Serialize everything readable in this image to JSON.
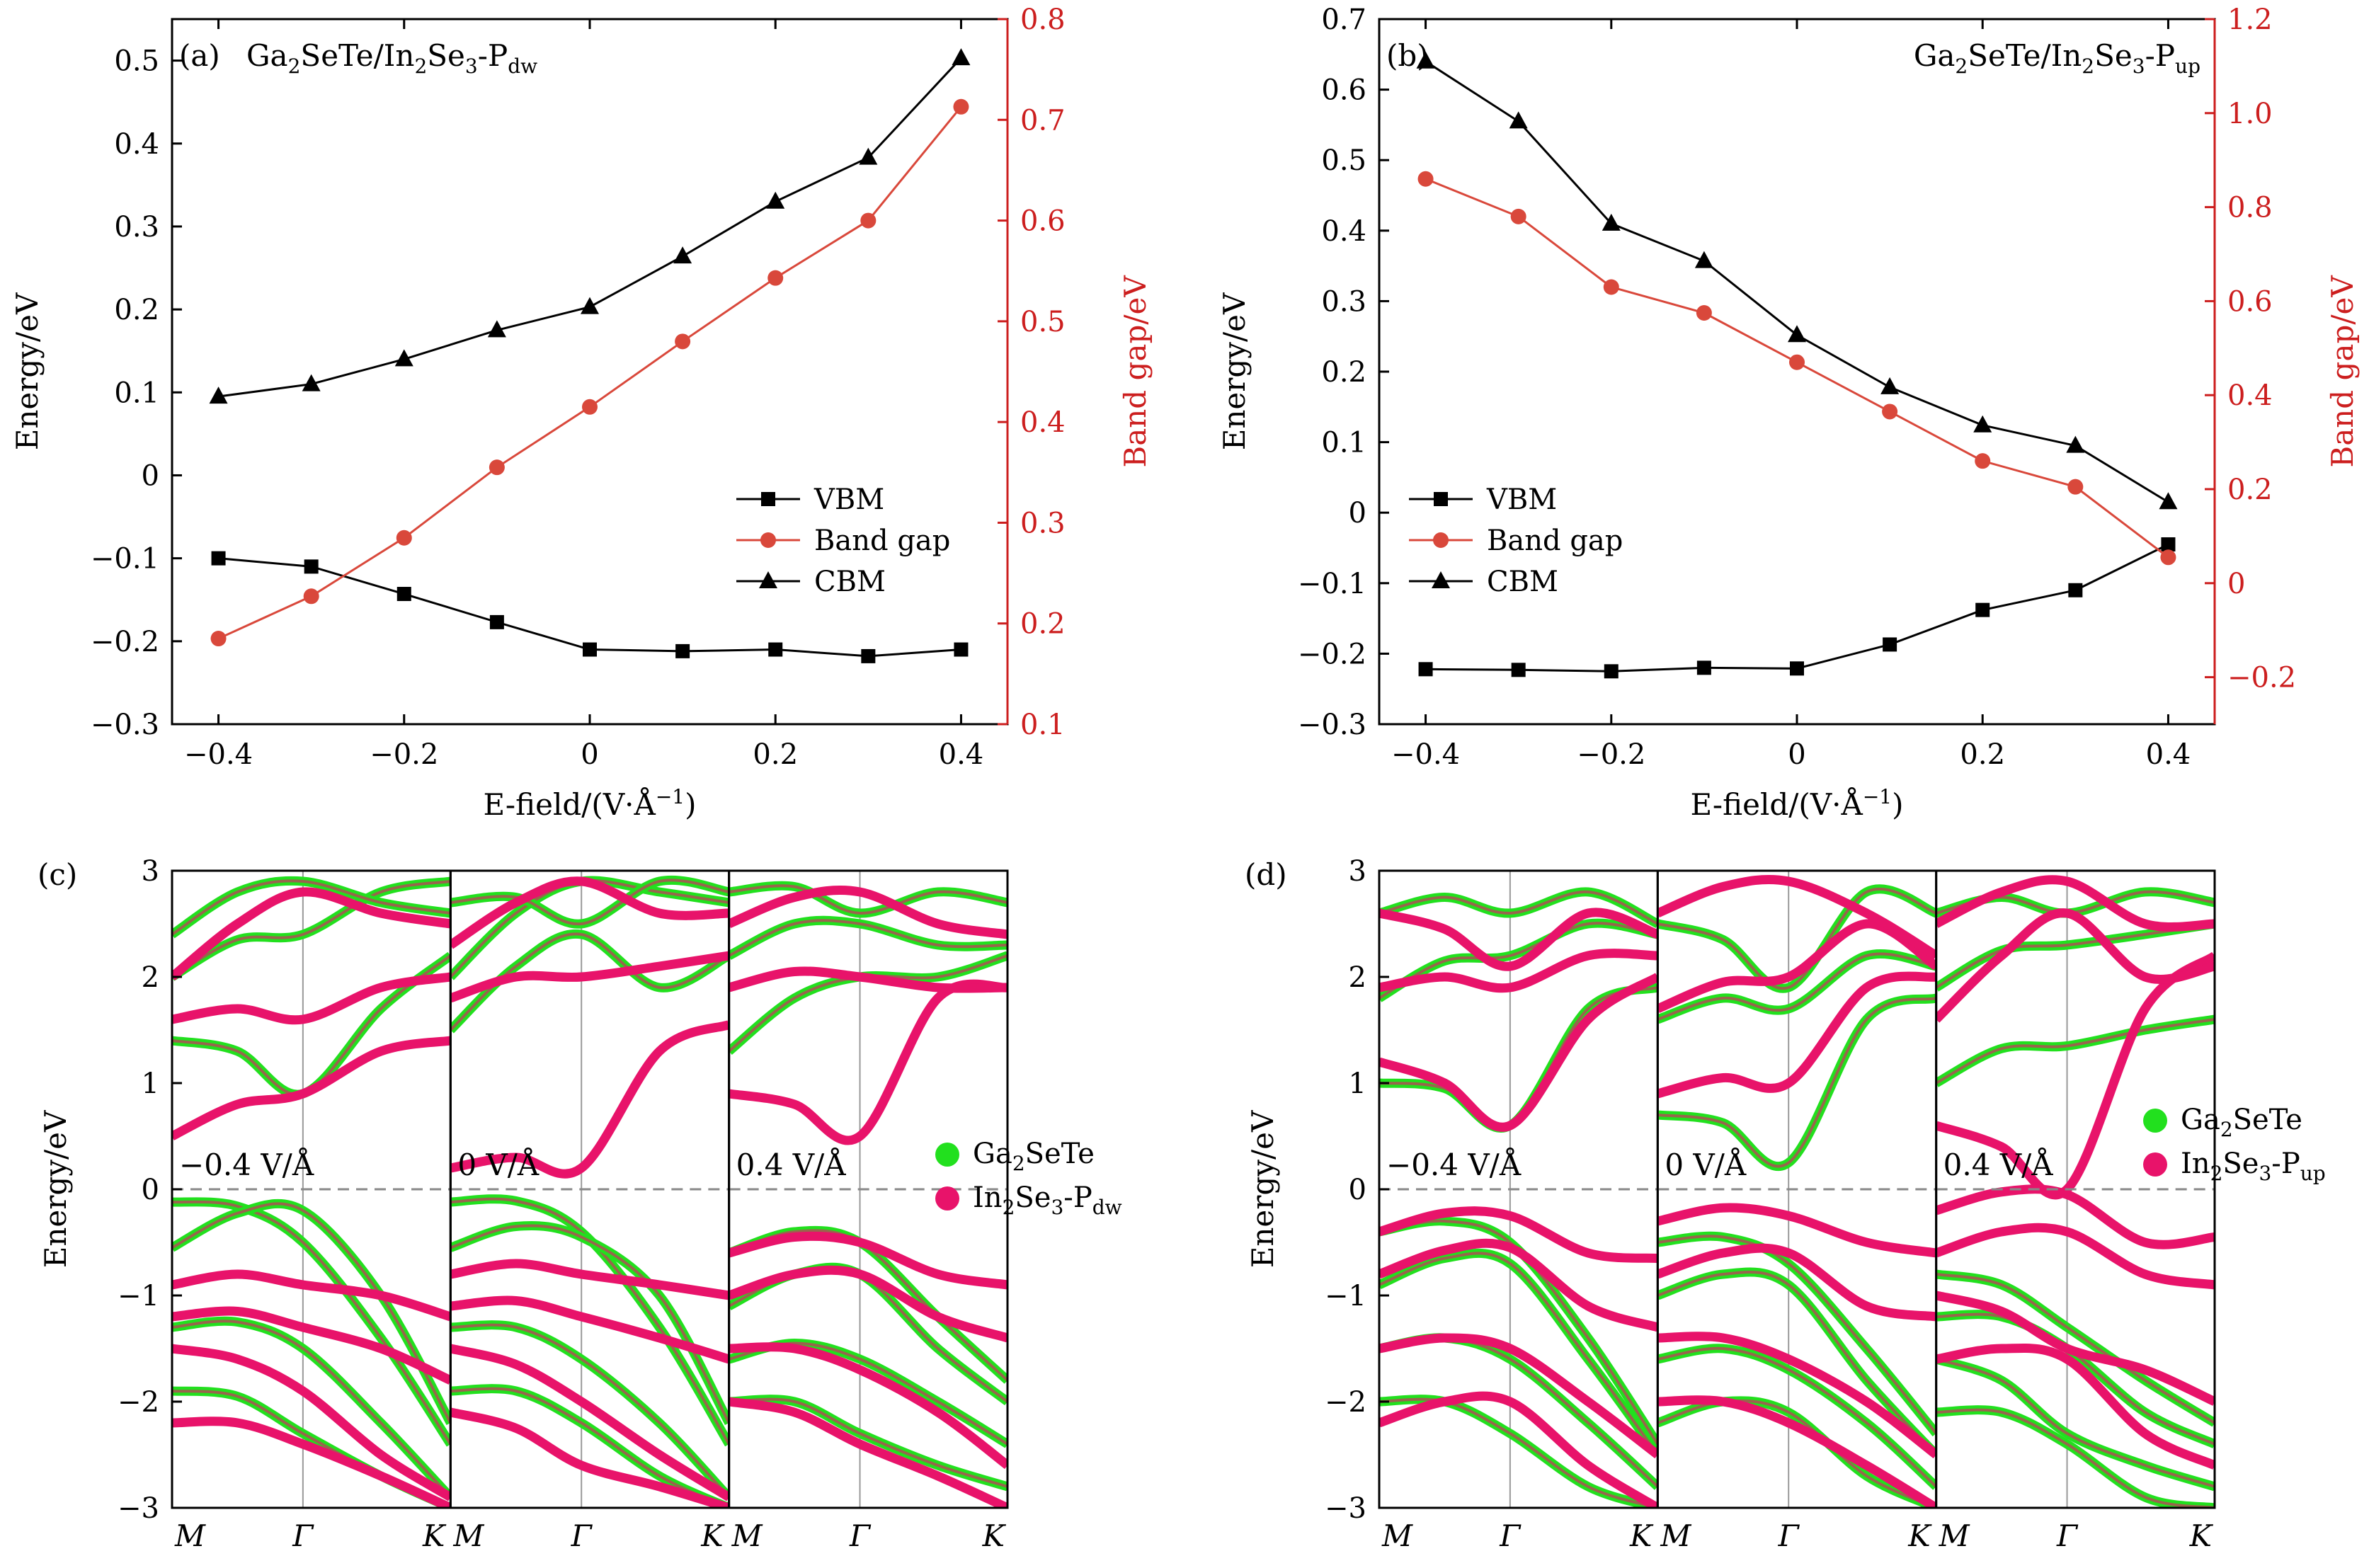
{
  "colors": {
    "vbm": "#000000",
    "cbm": "#000000",
    "band_gap": "#d9483b",
    "right_axis": "#cc1e1e",
    "ga2sete": "#22e01e",
    "in2se3": "#e8136a",
    "fermi_line": "#888888"
  },
  "chart_data": [
    {
      "id": "a",
      "type": "line",
      "panel_label": "(a)",
      "title": {
        "pre": "Ga",
        "s1": "2",
        "mid": "SeTe/In",
        "s2": "2",
        "mid2": "Se",
        "s3": "3",
        "mid3": "-P",
        "s4": "dw"
      },
      "xlabel": "E-field/(V·Å",
      "xlabel_sup": "−1",
      "xlabel_end": ")",
      "ylabel": "Energy/eV",
      "ylabel_right": "Band gap/eV",
      "x": [
        -0.4,
        -0.3,
        -0.2,
        -0.1,
        0,
        0.1,
        0.2,
        0.3,
        0.4
      ],
      "xlim": [
        -0.45,
        0.45
      ],
      "ylim": [
        -0.3,
        0.55
      ],
      "ylim_right": [
        0.1,
        0.8
      ],
      "xticks": [
        "−0.4",
        "−0.2",
        "0",
        "0.2",
        "0.4"
      ],
      "yticks": [
        "−0.3",
        "−0.2",
        "−0.1",
        "0",
        "0.1",
        "0.2",
        "0.3",
        "0.4",
        "0.5"
      ],
      "yticks_right": [
        "0.1",
        "0.2",
        "0.3",
        "0.4",
        "0.5",
        "0.6",
        "0.7",
        "0.8"
      ],
      "series": [
        {
          "name": "VBM",
          "axis": "left",
          "marker": "square",
          "values": [
            -0.1,
            -0.11,
            -0.143,
            -0.177,
            -0.21,
            -0.212,
            -0.21,
            -0.218,
            -0.21
          ]
        },
        {
          "name": "Band gap",
          "axis": "right",
          "marker": "circle",
          "values": [
            0.185,
            0.227,
            0.285,
            0.355,
            0.415,
            0.48,
            0.543,
            0.6,
            0.713
          ]
        },
        {
          "name": "CBM",
          "axis": "left",
          "marker": "triangle",
          "values": [
            0.095,
            0.11,
            0.14,
            0.175,
            0.203,
            0.264,
            0.33,
            0.383,
            0.503
          ]
        }
      ],
      "legend": [
        "VBM",
        "Band gap",
        "CBM"
      ],
      "legend_position": "lower-right"
    },
    {
      "id": "b",
      "type": "line",
      "panel_label": "(b)",
      "title": {
        "pre": "Ga",
        "s1": "2",
        "mid": "SeTe/In",
        "s2": "2",
        "mid2": "Se",
        "s3": "3",
        "mid3": "-P",
        "s4": "up"
      },
      "xlabel": "E-field/(V·Å",
      "xlabel_sup": "−1",
      "xlabel_end": ")",
      "ylabel": "Energy/eV",
      "ylabel_right": "Band gap/eV",
      "x": [
        -0.4,
        -0.3,
        -0.2,
        -0.1,
        0,
        0.1,
        0.2,
        0.3,
        0.4
      ],
      "xlim": [
        -0.45,
        0.45
      ],
      "ylim": [
        -0.3,
        0.7
      ],
      "ylim_right": [
        -0.3,
        1.2
      ],
      "xticks": [
        "−0.4",
        "−0.2",
        "0",
        "0.2",
        "0.4"
      ],
      "yticks": [
        "−0.3",
        "−0.2",
        "−0.1",
        "0",
        "0.1",
        "0.2",
        "0.3",
        "0.4",
        "0.5",
        "0.6",
        "0.7"
      ],
      "yticks_right": [
        "−0.2",
        "0",
        "0.2",
        "0.4",
        "0.6",
        "0.8",
        "1.0",
        "1.2"
      ],
      "series": [
        {
          "name": "VBM",
          "axis": "left",
          "marker": "square",
          "values": [
            -0.222,
            -0.223,
            -0.225,
            -0.22,
            -0.221,
            -0.187,
            -0.138,
            -0.11,
            -0.045
          ]
        },
        {
          "name": "Band gap",
          "axis": "right",
          "marker": "circle",
          "values": [
            0.86,
            0.78,
            0.63,
            0.575,
            0.47,
            0.365,
            0.26,
            0.205,
            0.055
          ]
        },
        {
          "name": "CBM",
          "axis": "left",
          "marker": "triangle",
          "values": [
            0.64,
            0.555,
            0.41,
            0.357,
            0.252,
            0.178,
            0.124,
            0.095,
            0.015
          ]
        }
      ],
      "legend": [
        "VBM",
        "Band gap",
        "CBM"
      ],
      "legend_position": "lower-left"
    },
    {
      "id": "c",
      "type": "band-structure",
      "panel_label": "(c)",
      "ylabel": "Energy/eV",
      "ylim": [
        -3,
        3
      ],
      "yticks": [
        "−3",
        "−2",
        "−1",
        "0",
        "1",
        "2",
        "3"
      ],
      "kpoints": [
        "M",
        "Γ",
        "K"
      ],
      "subpanels": [
        "−0.4 V/Å",
        "0 V/Å",
        "0.4 V/Å"
      ],
      "legend": [
        {
          "pre": "Ga",
          "s1": "2",
          "mid": "SeTe",
          "s2": "",
          "mid2": "",
          "s3": "",
          "mid3": "",
          "s4": ""
        },
        {
          "pre": "In",
          "s1": "2",
          "mid": "Se",
          "s2": "3",
          "mid2": "-P",
          "s3": "dw",
          "mid3": "",
          "s4": ""
        }
      ],
      "bands": [
        [
          {
            "name": "Ga2SeTe",
            "lines": [
              [
                -0.12,
                -0.5,
                -1.4,
                -2.4
              ],
              [
                -0.55,
                -0.2,
                -1.0,
                -2.2
              ],
              [
                -1.3,
                -1.5,
                -2.2,
                -2.9
              ],
              [
                -1.9,
                -2.3,
                -2.7,
                -3.0
              ],
              [
                1.4,
                0.9,
                1.7,
                2.2
              ],
              [
                2.0,
                2.4,
                2.8,
                2.9
              ],
              [
                2.4,
                2.9,
                2.7,
                2.6
              ]
            ]
          },
          {
            "name": "In2Se3",
            "lines": [
              [
                -0.9,
                -0.9,
                -1.0,
                -1.2
              ],
              [
                -1.2,
                -1.3,
                -1.5,
                -1.8
              ],
              [
                -1.5,
                -1.9,
                -2.5,
                -2.9
              ],
              [
                -2.2,
                -2.4,
                -2.7,
                -3.0
              ],
              [
                0.5,
                0.9,
                1.3,
                1.4
              ],
              [
                1.6,
                1.6,
                1.9,
                2.0
              ],
              [
                2.0,
                2.8,
                2.6,
                2.5
              ]
            ]
          }
        ],
        [
          {
            "name": "Ga2SeTe",
            "lines": [
              [
                -0.12,
                -0.4,
                -1.3,
                -2.4
              ],
              [
                -0.55,
                -0.45,
                -1.0,
                -2.2
              ],
              [
                -1.3,
                -1.6,
                -2.2,
                -2.9
              ],
              [
                -1.9,
                -2.2,
                -2.7,
                -3.0
              ],
              [
                1.5,
                2.4,
                1.9,
                2.2
              ],
              [
                2.0,
                2.9,
                2.8,
                2.7
              ],
              [
                2.7,
                2.5,
                2.9,
                2.8
              ]
            ]
          },
          {
            "name": "In2Se3",
            "lines": [
              [
                -0.8,
                -0.8,
                -0.9,
                -1.0
              ],
              [
                -1.1,
                -1.2,
                -1.4,
                -1.6
              ],
              [
                -1.5,
                -2.0,
                -2.5,
                -2.9
              ],
              [
                -2.1,
                -2.6,
                -2.8,
                -3.0
              ],
              [
                0.2,
                0.2,
                1.3,
                1.55
              ],
              [
                1.8,
                2.0,
                2.1,
                2.2
              ],
              [
                2.3,
                2.9,
                2.6,
                2.6
              ]
            ]
          }
        ],
        [
          {
            "name": "Ga2SeTe",
            "lines": [
              [
                -0.6,
                -0.5,
                -1.2,
                -1.8
              ],
              [
                -1.1,
                -0.8,
                -1.5,
                -2.0
              ],
              [
                -1.6,
                -1.6,
                -2.0,
                -2.4
              ],
              [
                -2.0,
                -2.3,
                -2.6,
                -2.8
              ],
              [
                1.3,
                2.0,
                2.0,
                2.2
              ],
              [
                2.2,
                2.5,
                2.3,
                2.3
              ],
              [
                2.8,
                2.6,
                2.8,
                2.7
              ]
            ]
          },
          {
            "name": "In2Se3",
            "lines": [
              [
                -0.6,
                -0.5,
                -0.8,
                -0.9
              ],
              [
                -1.0,
                -0.8,
                -1.2,
                -1.4
              ],
              [
                -1.5,
                -1.7,
                -2.1,
                -2.6
              ],
              [
                -2.0,
                -2.4,
                -2.7,
                -3.0
              ],
              [
                0.9,
                0.5,
                1.8,
                1.9
              ],
              [
                1.9,
                2.0,
                1.9,
                1.9
              ],
              [
                2.5,
                2.8,
                2.5,
                2.4
              ]
            ]
          }
        ]
      ]
    },
    {
      "id": "d",
      "type": "band-structure",
      "panel_label": "(d)",
      "ylabel": "Energy/eV",
      "ylim": [
        -3,
        3
      ],
      "yticks": [
        "−3",
        "−2",
        "−1",
        "0",
        "1",
        "2",
        "3"
      ],
      "kpoints": [
        "M",
        "Γ",
        "K"
      ],
      "subpanels": [
        "−0.4 V/Å",
        "0 V/Å",
        "0.4 V/Å"
      ],
      "legend": [
        {
          "pre": "Ga",
          "s1": "2",
          "mid": "SeTe",
          "s2": "",
          "mid2": "",
          "s3": "",
          "mid3": "",
          "s4": ""
        },
        {
          "pre": "In",
          "s1": "2",
          "mid": "Se",
          "s2": "3",
          "mid2": "-P",
          "s3": "up",
          "mid3": "",
          "s4": ""
        }
      ],
      "bands": [
        [
          {
            "name": "Ga2SeTe",
            "lines": [
              [
                -0.4,
                -0.5,
                -1.4,
                -2.4
              ],
              [
                -0.9,
                -0.7,
                -1.6,
                -2.5
              ],
              [
                -1.5,
                -1.6,
                -2.2,
                -2.8
              ],
              [
                -2.0,
                -2.3,
                -2.8,
                -3.0
              ],
              [
                1.0,
                0.6,
                1.7,
                1.9
              ],
              [
                1.8,
                2.2,
                2.5,
                2.4
              ],
              [
                2.6,
                2.6,
                2.8,
                2.5
              ]
            ]
          },
          {
            "name": "In2Se3",
            "lines": [
              [
                -0.4,
                -0.25,
                -0.6,
                -0.65
              ],
              [
                -0.8,
                -0.55,
                -1.1,
                -1.3
              ],
              [
                -1.5,
                -1.5,
                -2.0,
                -2.5
              ],
              [
                -2.2,
                -2.0,
                -2.6,
                -3.0
              ],
              [
                1.2,
                0.6,
                1.6,
                2.0
              ],
              [
                1.9,
                1.9,
                2.2,
                2.2
              ],
              [
                2.6,
                2.1,
                2.6,
                2.4
              ]
            ]
          }
        ],
        [
          {
            "name": "Ga2SeTe",
            "lines": [
              [
                -0.5,
                -0.7,
                -1.5,
                -2.3
              ],
              [
                -1.0,
                -0.9,
                -1.8,
                -2.5
              ],
              [
                -1.6,
                -1.7,
                -2.2,
                -2.8
              ],
              [
                -2.2,
                -2.1,
                -2.7,
                -3.0
              ],
              [
                0.7,
                0.25,
                1.6,
                1.8
              ],
              [
                1.6,
                1.7,
                2.2,
                2.1
              ],
              [
                2.5,
                1.9,
                2.8,
                2.6
              ]
            ]
          },
          {
            "name": "In2Se3",
            "lines": [
              [
                -0.3,
                -0.25,
                -0.5,
                -0.6
              ],
              [
                -0.8,
                -0.6,
                -1.1,
                -1.2
              ],
              [
                -1.4,
                -1.6,
                -2.0,
                -2.5
              ],
              [
                -2.0,
                -2.2,
                -2.6,
                -3.0
              ],
              [
                0.9,
                1.0,
                1.9,
                2.0
              ],
              [
                1.7,
                2.0,
                2.5,
                2.1
              ],
              [
                2.6,
                2.9,
                2.6,
                2.2
              ]
            ]
          }
        ],
        [
          {
            "name": "Ga2SeTe",
            "lines": [
              [
                -0.8,
                -1.3,
                -1.8,
                -2.2
              ],
              [
                -1.2,
                -1.5,
                -2.1,
                -2.4
              ],
              [
                -1.6,
                -2.3,
                -2.6,
                -2.8
              ],
              [
                -2.1,
                -2.4,
                -2.9,
                -3.0
              ],
              [
                1.0,
                1.35,
                1.5,
                1.6
              ],
              [
                1.9,
                2.3,
                2.4,
                2.5
              ],
              [
                2.6,
                2.6,
                2.8,
                2.7
              ]
            ]
          },
          {
            "name": "In2Se3",
            "lines": [
              [
                -0.2,
                -0.05,
                -0.5,
                -0.45
              ],
              [
                -0.6,
                -0.4,
                -0.8,
                -0.9
              ],
              [
                -1.0,
                -1.5,
                -1.7,
                -2.0
              ],
              [
                -1.6,
                -1.6,
                -2.3,
                -2.6
              ],
              [
                0.6,
                0.0,
                1.7,
                2.2
              ],
              [
                1.6,
                2.6,
                2.0,
                2.1
              ],
              [
                2.5,
                2.9,
                2.5,
                2.5
              ]
            ]
          }
        ]
      ]
    }
  ]
}
